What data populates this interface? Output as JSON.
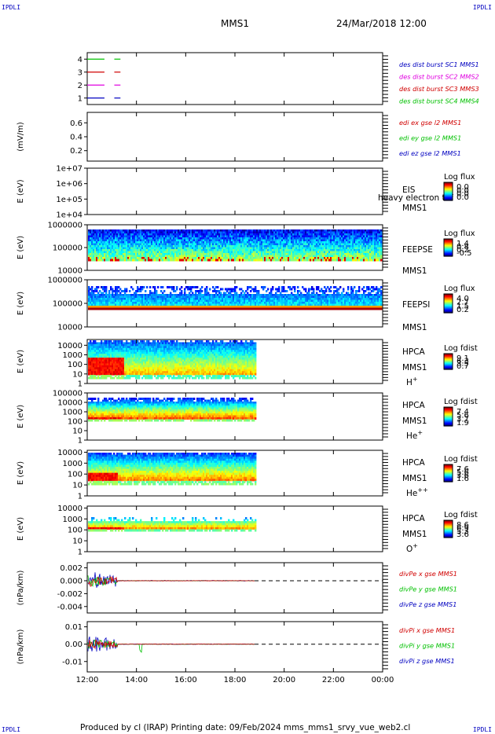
{
  "corner_labels": {
    "top_left": "IPDLI",
    "top_right": "IPDLI",
    "bottom_left": "IPDLI",
    "bottom_right": "IPDLI"
  },
  "header": {
    "title": "MMS1",
    "date": "24/Mar/2018 12:00"
  },
  "footer": {
    "text": "Produced by cl (IRAP)   Printing date: 09/Feb/2024   mms_mms1_srvy_vue_web2.cl"
  },
  "colors": {
    "blue": "#0000c0",
    "red": "#d00000",
    "green": "#00c000",
    "magenta": "#e000e0",
    "black": "#000000"
  },
  "chart_data": [
    {
      "type": "line",
      "panel": "burst",
      "yticks": [
        "1",
        "2",
        "3",
        "4"
      ],
      "ylim": [
        0.5,
        4.5
      ],
      "series": [
        {
          "name": "des dist burst SC1 MMS1",
          "level": 1,
          "color": "#0000c0",
          "segments": [
            [
              12.0,
              12.7
            ],
            [
              13.1,
              13.35
            ]
          ]
        },
        {
          "name": "des dist burst SC2 MMS2",
          "level": 2,
          "color": "#e000e0",
          "segments": [
            [
              12.0,
              12.7
            ],
            [
              13.1,
              13.35
            ]
          ]
        },
        {
          "name": "des dist burst SC3 MMS3",
          "level": 3,
          "color": "#d00000",
          "segments": [
            [
              12.0,
              12.7
            ],
            [
              13.1,
              13.35
            ]
          ]
        },
        {
          "name": "des dist burst SC4 MMS4",
          "level": 4,
          "color": "#00c000",
          "segments": [
            [
              12.0,
              12.7
            ],
            [
              13.1,
              13.35
            ]
          ]
        }
      ]
    },
    {
      "type": "line",
      "panel": "edi",
      "ylabel": "(mV/m)",
      "yticks": [
        "0.2",
        "0.4",
        "0.6"
      ],
      "ylim": [
        0.05,
        0.75
      ],
      "series": [
        {
          "name": "edi ex gse l2 MMS1",
          "color": "#d00000"
        },
        {
          "name": "edi ey gse l2 MMS1",
          "color": "#00c000"
        },
        {
          "name": "edi ez gse l2 MMS1",
          "color": "#0000c0"
        }
      ]
    },
    {
      "type": "heatmap",
      "panel": "eis",
      "ylabel": "E (eV)",
      "log": true,
      "yticks": [
        "1e+04",
        "1e+05",
        "1e+06",
        "1e+07"
      ],
      "ylim": [
        10000.0,
        10000000.0
      ],
      "labels": [
        "EIS",
        "heavy electron tof",
        "MMS1"
      ],
      "colorbar": {
        "title": "Log flux",
        "ticks": [
          "0.0",
          "0.0",
          "0.0",
          "0.0"
        ]
      }
    },
    {
      "type": "heatmap",
      "panel": "feeps_e",
      "ylabel": "E (eV)",
      "log": true,
      "yticks": [
        "10000",
        "100000",
        "1000000"
      ],
      "ylim": [
        10000.0,
        1000000.0
      ],
      "labels": [
        "FEEPSE",
        "MMS1"
      ],
      "colorbar": {
        "title": "Log flux",
        "ticks": [
          "1.4",
          "0.8",
          "0.2",
          "-0.5"
        ]
      }
    },
    {
      "type": "heatmap",
      "panel": "feeps_i",
      "ylabel": "E (eV)",
      "log": true,
      "yticks": [
        "10000",
        "100000",
        "1000000"
      ],
      "ylim": [
        10000.0,
        1000000.0
      ],
      "labels": [
        "FEEPSI",
        "MMS1"
      ],
      "colorbar": {
        "title": "Log flux",
        "ticks": [
          "4.0",
          "2.7",
          "1.5",
          "0.2"
        ]
      }
    },
    {
      "type": "heatmap",
      "panel": "hpca_h",
      "ylabel": "E (eV)",
      "log": true,
      "yticks": [
        "1",
        "10",
        "100",
        "1000",
        "10000"
      ],
      "ylim": [
        1,
        40000
      ],
      "labels": [
        "HPCA",
        "MMS1"
      ],
      "species": "H",
      "species_sup": "+",
      "colorbar": {
        "title": "Log fdist",
        "ticks": [
          "9.1",
          "6.3",
          "3.5",
          "0.7"
        ]
      }
    },
    {
      "type": "heatmap",
      "panel": "hpca_he",
      "ylabel": "E (eV)",
      "log": true,
      "yticks": [
        "1",
        "10",
        "100",
        "1000",
        "10000",
        "100000"
      ],
      "ylim": [
        1,
        100000
      ],
      "labels": [
        "HPCA",
        "MMS1"
      ],
      "species": "He",
      "species_sup": "+",
      "colorbar": {
        "title": "Log fdist",
        "ticks": [
          "7.4",
          "5.6",
          "3.7",
          "1.9"
        ]
      }
    },
    {
      "type": "heatmap",
      "panel": "hpca_hepp",
      "ylabel": "E (eV)",
      "log": true,
      "yticks": [
        "1",
        "10",
        "100",
        "1000",
        "10000"
      ],
      "ylim": [
        1,
        15000
      ],
      "labels": [
        "HPCA",
        "MMS1"
      ],
      "species": "He",
      "species_sup": "++",
      "colorbar": {
        "title": "Log fdist",
        "ticks": [
          "7.6",
          "5.6",
          "3.6",
          "1.6"
        ]
      }
    },
    {
      "type": "heatmap",
      "panel": "hpca_o",
      "ylabel": "E (eV)",
      "log": true,
      "yticks": [
        "1",
        "10",
        "100",
        "1000",
        "10000"
      ],
      "ylim": [
        1,
        15000
      ],
      "labels": [
        "HPCA",
        "MMS1"
      ],
      "species": "O",
      "species_sup": "+",
      "colorbar": {
        "title": "Log fdist",
        "ticks": [
          "8.6",
          "6.9",
          "5.3",
          "3.6"
        ]
      }
    },
    {
      "type": "line",
      "panel": "divpe",
      "ylabel": "(nPa/km)",
      "yticks": [
        "-0.004",
        "-0.002",
        "0.000",
        "0.002"
      ],
      "ylim": [
        -0.005,
        0.0028
      ],
      "zero_line": true,
      "series": [
        {
          "name": "divPe x gse MMS1",
          "color": "#d00000"
        },
        {
          "name": "divPe y gse MMS1",
          "color": "#00c000"
        },
        {
          "name": "divPe z gse MMS1",
          "color": "#0000c0"
        }
      ]
    },
    {
      "type": "line",
      "panel": "divpi",
      "ylabel": "(nPa/km)",
      "yticks": [
        "-0.01",
        "0.00",
        "0.01"
      ],
      "ylim": [
        -0.016,
        0.013
      ],
      "zero_line": true,
      "series": [
        {
          "name": "divPi x gse MMS1",
          "color": "#d00000"
        },
        {
          "name": "divPi y gse MMS1",
          "color": "#00c000"
        },
        {
          "name": "divPi z gse MMS1",
          "color": "#0000c0"
        }
      ]
    }
  ],
  "time_axis": {
    "labels": [
      "12:00",
      "14:00",
      "16:00",
      "18:00",
      "20:00",
      "22:00",
      "00:00"
    ],
    "start_hour": 12,
    "end_hour": 24,
    "data_end_hour": 18.8
  }
}
